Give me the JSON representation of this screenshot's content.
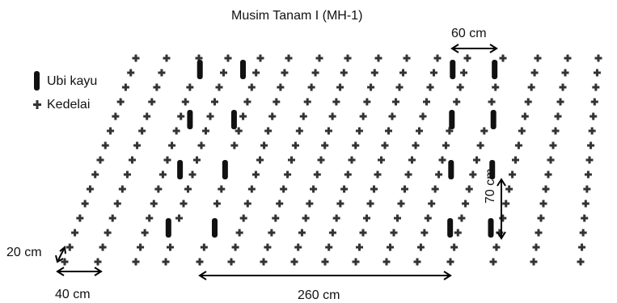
{
  "title": "Musim Tanam I (MH-1)",
  "legend": {
    "cassava_label": "Ubi kayu",
    "soybean_label": "Kedelai",
    "cassava_icon": "black-vertical-bar",
    "soybean_icon": "small-dark-cross"
  },
  "measurements": {
    "cassava_row_gap": "60 cm",
    "soybean_row_gap": "40 cm",
    "soybean_plant_gap": "20 cm",
    "cassava_plant_gap": "70 cm",
    "alley_width": "260 cm"
  },
  "colors": {
    "plant": "#333333",
    "cassava": "#111111",
    "arrow": "#000000",
    "text": "#111111"
  }
}
